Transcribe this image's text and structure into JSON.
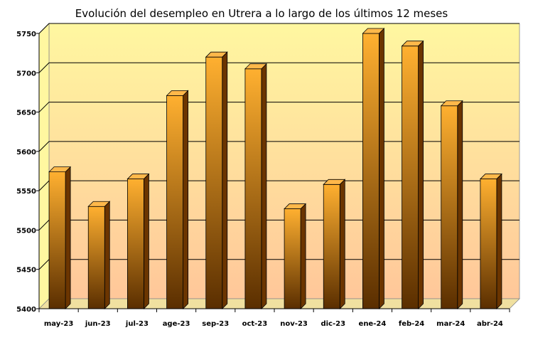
{
  "chart_data": {
    "type": "bar",
    "title": "Evolución del desempleo en Utrera a lo largo de los últimos 12 meses",
    "xlabel": "",
    "ylabel": "",
    "categories": [
      "may-23",
      "jun-23",
      "jul-23",
      "age-23",
      "sep-23",
      "oct-23",
      "nov-23",
      "dic-23",
      "ene-24",
      "feb-24",
      "mar-24",
      "abr-24"
    ],
    "values": [
      5574,
      5530,
      5565,
      5671,
      5720,
      5705,
      5527,
      5558,
      5750,
      5734,
      5658,
      5565
    ],
    "ylim": [
      5400,
      5750
    ],
    "yticks": [
      5400,
      5450,
      5500,
      5550,
      5600,
      5650,
      5700,
      5750
    ],
    "grid": true,
    "legend": "none",
    "style": "3d-bar",
    "colors": {
      "bar_light": "#FFB030",
      "bar_dark": "#5A2E00",
      "bar_side": "#6B3500",
      "bar_top": "#FFB84A",
      "wall_top": "#FFF7A0",
      "wall_bottom": "#FFC79A",
      "floor": "#F0E0A0",
      "grid": "#000000"
    }
  }
}
